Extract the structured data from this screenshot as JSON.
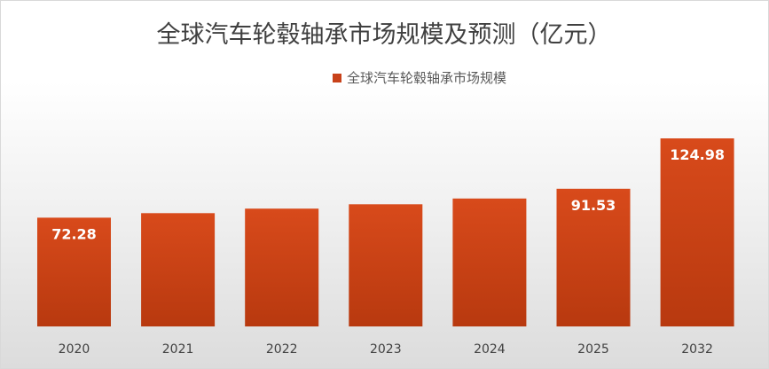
{
  "colors": {
    "bar_top": "#d84a1b",
    "bar_bottom": "#b8390f",
    "legend_swatch": "#c8421a"
  },
  "chart_data": {
    "type": "bar",
    "title": "全球汽车轮毂轴承市场规模及预测（亿元）",
    "xlabel": "",
    "ylabel": "",
    "legend": {
      "position": "top"
    },
    "grid": false,
    "categories": [
      "2020",
      "2021",
      "2022",
      "2023",
      "2024",
      "2025",
      "2032"
    ],
    "series": [
      {
        "name": "全球汽车轮毂轴承市场规模",
        "values": [
          72.28,
          75.3,
          78.3,
          81.2,
          85.0,
          91.53,
          124.98
        ]
      }
    ],
    "data_labels": [
      "72.28",
      "",
      "",
      "",
      "",
      "91.53",
      "124.98"
    ],
    "ylim": [
      0,
      125
    ]
  }
}
